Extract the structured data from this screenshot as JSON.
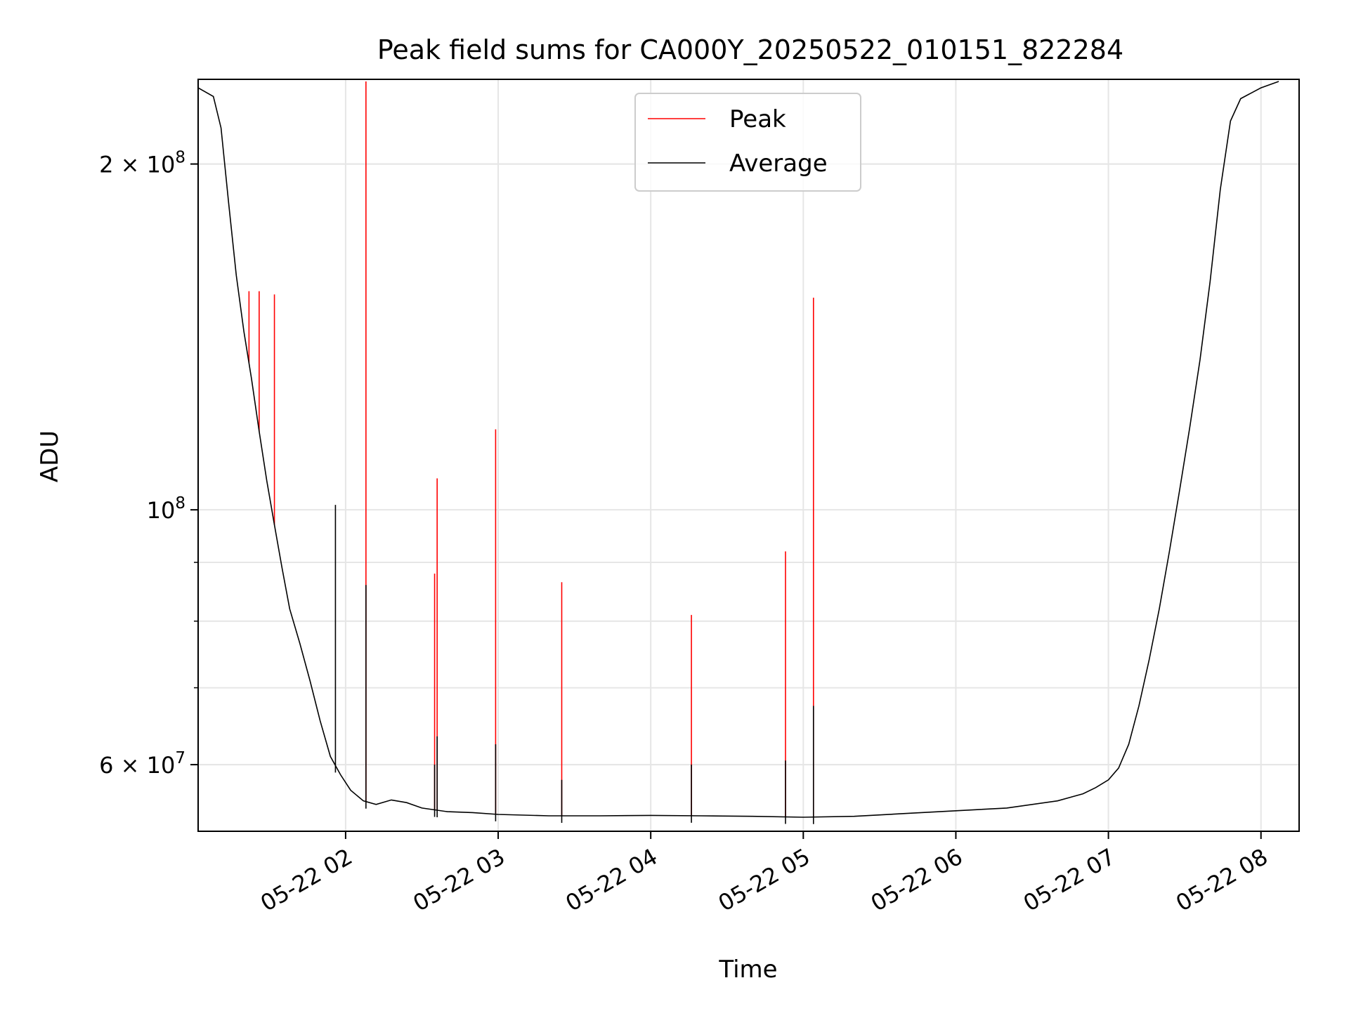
{
  "chart_data": {
    "type": "line",
    "title": "Peak field sums for CA000Y_20250522_010151_822284",
    "xlabel": "Time",
    "ylabel": "ADU",
    "y_scale": "log",
    "xlim": [
      "2025-05-22 01:02",
      "2025-05-22 08:15"
    ],
    "ylim": [
      52500000,
      237000000
    ],
    "x_ticks": [
      {
        "value": "2025-05-22 02:00",
        "label": "05-22 02"
      },
      {
        "value": "2025-05-22 03:00",
        "label": "05-22 03"
      },
      {
        "value": "2025-05-22 04:00",
        "label": "05-22 04"
      },
      {
        "value": "2025-05-22 05:00",
        "label": "05-22 05"
      },
      {
        "value": "2025-05-22 06:00",
        "label": "05-22 06"
      },
      {
        "value": "2025-05-22 07:00",
        "label": "05-22 07"
      },
      {
        "value": "2025-05-22 08:00",
        "label": "05-22 08"
      }
    ],
    "y_major_ticks": [
      {
        "value": 100000000,
        "base": "10",
        "exp": "8"
      },
      {
        "value": 200000000,
        "base": "2 × 10",
        "exp": "8"
      },
      {
        "value": 60000000,
        "base": "6 × 10",
        "exp": "7"
      }
    ],
    "y_minor_ticks": [
      60000000,
      70000000,
      80000000,
      90000000,
      200000000
    ],
    "grid": true,
    "legend": {
      "placement": "upper center",
      "entries": [
        "Peak",
        "Average"
      ]
    },
    "series": [
      {
        "name": "Average",
        "color": "#000000",
        "points": [
          [
            "2025-05-22 01:02",
            233000000
          ],
          [
            "2025-05-22 01:08",
            229000000
          ],
          [
            "2025-05-22 01:11",
            215000000
          ],
          [
            "2025-05-22 01:14",
            185000000
          ],
          [
            "2025-05-22 01:17",
            160000000
          ],
          [
            "2025-05-22 01:20",
            143000000
          ],
          [
            "2025-05-22 01:23",
            130000000
          ],
          [
            "2025-05-22 01:26",
            117000000
          ],
          [
            "2025-05-22 01:29",
            106000000
          ],
          [
            "2025-05-22 01:32",
            97000000
          ],
          [
            "2025-05-22 01:35",
            89000000
          ],
          [
            "2025-05-22 01:38",
            82000000
          ],
          [
            "2025-05-22 01:42",
            76500000
          ],
          [
            "2025-05-22 01:46",
            71000000
          ],
          [
            "2025-05-22 01:50",
            65500000
          ],
          [
            "2025-05-22 01:54",
            61000000
          ],
          [
            "2025-05-22 01:58",
            58800000
          ],
          [
            "2025-05-22 02:02",
            57000000
          ],
          [
            "2025-05-22 02:07",
            55800000
          ],
          [
            "2025-05-22 02:12",
            55400000
          ],
          [
            "2025-05-22 02:18",
            55900000
          ],
          [
            "2025-05-22 02:24",
            55600000
          ],
          [
            "2025-05-22 02:30",
            55000000
          ],
          [
            "2025-05-22 02:40",
            54600000
          ],
          [
            "2025-05-22 02:50",
            54500000
          ],
          [
            "2025-05-22 03:00",
            54300000
          ],
          [
            "2025-05-22 03:20",
            54150000
          ],
          [
            "2025-05-22 03:40",
            54150000
          ],
          [
            "2025-05-22 04:00",
            54200000
          ],
          [
            "2025-05-22 04:20",
            54150000
          ],
          [
            "2025-05-22 04:40",
            54100000
          ],
          [
            "2025-05-22 05:00",
            54000000
          ],
          [
            "2025-05-22 05:20",
            54100000
          ],
          [
            "2025-05-22 05:40",
            54400000
          ],
          [
            "2025-05-22 06:00",
            54700000
          ],
          [
            "2025-05-22 06:20",
            55000000
          ],
          [
            "2025-05-22 06:40",
            55800000
          ],
          [
            "2025-05-22 06:50",
            56600000
          ],
          [
            "2025-05-22 06:55",
            57300000
          ],
          [
            "2025-05-22 07:00",
            58200000
          ],
          [
            "2025-05-22 07:04",
            59600000
          ],
          [
            "2025-05-22 07:08",
            62500000
          ],
          [
            "2025-05-22 07:12",
            67500000
          ],
          [
            "2025-05-22 07:16",
            74000000
          ],
          [
            "2025-05-22 07:20",
            82000000
          ],
          [
            "2025-05-22 07:24",
            92000000
          ],
          [
            "2025-05-22 07:28",
            104000000
          ],
          [
            "2025-05-22 07:32",
            118000000
          ],
          [
            "2025-05-22 07:36",
            135000000
          ],
          [
            "2025-05-22 07:40",
            158000000
          ],
          [
            "2025-05-22 07:44",
            190000000
          ],
          [
            "2025-05-22 07:48",
            218000000
          ],
          [
            "2025-05-22 07:52",
            228000000
          ],
          [
            "2025-05-22 08:00",
            233000000
          ],
          [
            "2025-05-22 08:07",
            236000000
          ]
        ],
        "spikes": [
          [
            "2025-05-22 01:56",
            101000000
          ],
          [
            "2025-05-22 02:08",
            86000000
          ],
          [
            "2025-05-22 02:35",
            60000000
          ],
          [
            "2025-05-22 02:36",
            63500000
          ],
          [
            "2025-05-22 02:59",
            62500000
          ],
          [
            "2025-05-22 03:25",
            58200000
          ],
          [
            "2025-05-22 04:16",
            60000000
          ],
          [
            "2025-05-22 04:53",
            60500000
          ],
          [
            "2025-05-22 05:04",
            67500000
          ]
        ]
      },
      {
        "name": "Peak",
        "color": "#ff0000",
        "spikes": [
          [
            "2025-05-22 01:22",
            155000000
          ],
          [
            "2025-05-22 01:26",
            155000000
          ],
          [
            "2025-05-22 01:32",
            154000000
          ],
          [
            "2025-05-22 02:08",
            236000000
          ],
          [
            "2025-05-22 02:35",
            88000000
          ],
          [
            "2025-05-22 02:36",
            106500000
          ],
          [
            "2025-05-22 02:59",
            117500000
          ],
          [
            "2025-05-22 03:25",
            86500000
          ],
          [
            "2025-05-22 04:16",
            81000000
          ],
          [
            "2025-05-22 04:53",
            92000000
          ],
          [
            "2025-05-22 05:04",
            153000000
          ]
        ]
      }
    ]
  }
}
